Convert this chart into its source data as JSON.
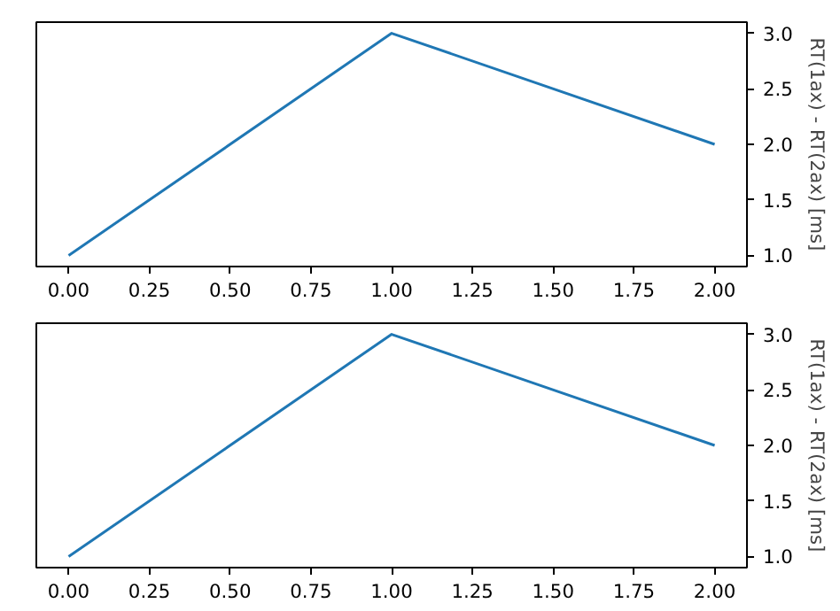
{
  "chart_data": [
    {
      "type": "line",
      "ylabel": "RT(1ax) - RT(2ax) [ms]",
      "x": [
        0,
        1,
        2
      ],
      "series": [
        {
          "color": "#1f77b4",
          "values": [
            1,
            3,
            2
          ]
        }
      ],
      "xlim": [
        -0.1,
        2.1
      ],
      "ylim": [
        0.9,
        3.1
      ],
      "xticks": [
        {
          "value": 0,
          "label": "0.00"
        },
        {
          "value": 0.25,
          "label": "0.25"
        },
        {
          "value": 0.5,
          "label": "0.50"
        },
        {
          "value": 0.75,
          "label": "0.75"
        },
        {
          "value": 1,
          "label": "1.00"
        },
        {
          "value": 1.25,
          "label": "1.25"
        },
        {
          "value": 1.5,
          "label": "1.50"
        },
        {
          "value": 1.75,
          "label": "1.75"
        },
        {
          "value": 2,
          "label": "2.00"
        }
      ],
      "yticks": [
        {
          "value": 1,
          "label": "1.0"
        },
        {
          "value": 1.5,
          "label": "1.5"
        },
        {
          "value": 2,
          "label": "2.0"
        },
        {
          "value": 2.5,
          "label": "2.5"
        },
        {
          "value": 3,
          "label": "3.0"
        }
      ],
      "grid": false,
      "line_style": "solid"
    },
    {
      "type": "line",
      "ylabel": "RT(1ax) - RT(2ax) [ms]",
      "x": [
        0,
        1,
        2
      ],
      "series": [
        {
          "color": "#1f77b4",
          "values": [
            1,
            3,
            2
          ]
        }
      ],
      "xlim": [
        -0.1,
        2.1
      ],
      "ylim": [
        0.9,
        3.1
      ],
      "xticks": [
        {
          "value": 0,
          "label": "0.00"
        },
        {
          "value": 0.25,
          "label": "0.25"
        },
        {
          "value": 0.5,
          "label": "0.50"
        },
        {
          "value": 0.75,
          "label": "0.75"
        },
        {
          "value": 1,
          "label": "1.00"
        },
        {
          "value": 1.25,
          "label": "1.25"
        },
        {
          "value": 1.5,
          "label": "1.50"
        },
        {
          "value": 1.75,
          "label": "1.75"
        },
        {
          "value": 2,
          "label": "2.00"
        }
      ],
      "yticks": [
        {
          "value": 1,
          "label": "1.0"
        },
        {
          "value": 1.5,
          "label": "1.5"
        },
        {
          "value": 2,
          "label": "2.0"
        },
        {
          "value": 2.5,
          "label": "2.5"
        },
        {
          "value": 3,
          "label": "3.0"
        }
      ],
      "grid": false,
      "line_style": "solid"
    }
  ]
}
